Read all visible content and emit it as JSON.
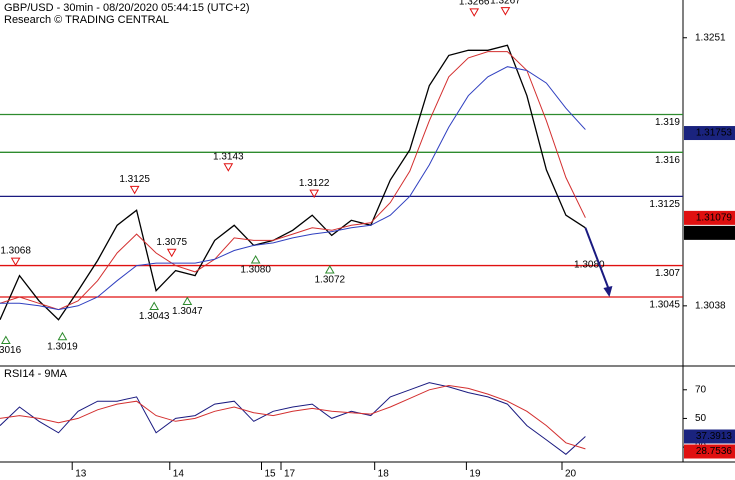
{
  "chart_data": [
    {
      "type": "line",
      "title": "GBP/USD - 30min - 08/20/2020 05:44:15 (UTC+2)",
      "subtitle": "Research © TRADING CENTRAL",
      "x": [
        0,
        10,
        20,
        30,
        40,
        50,
        60,
        70,
        80,
        90,
        100,
        110,
        120,
        130,
        140,
        150,
        160,
        170,
        180,
        190,
        200,
        210,
        220,
        230,
        240,
        250,
        260,
        270,
        280,
        290,
        300
      ],
      "xlim": [
        0,
        350
      ],
      "xticks": [
        {
          "value": 37,
          "label": "13"
        },
        {
          "value": 87,
          "label": "14"
        },
        {
          "value": 134,
          "label": "15"
        },
        {
          "value": 144,
          "label": "17"
        },
        {
          "value": 192,
          "label": "18"
        },
        {
          "value": 239,
          "label": "19"
        },
        {
          "value": 288,
          "label": "20"
        }
      ],
      "ylim": [
        1.2991,
        1.3281
      ],
      "yticks": [
        1.3251,
        1.3038
      ],
      "series": [
        {
          "color": "#000000",
          "values": [
            1.3027,
            1.3062,
            1.3042,
            1.3027,
            1.305,
            1.3074,
            1.3102,
            1.3114,
            1.305,
            1.3066,
            1.3062,
            1.309,
            1.3102,
            1.3086,
            1.309,
            1.3098,
            1.311,
            1.3094,
            1.3106,
            1.3102,
            1.3138,
            1.3162,
            1.3213,
            1.3237,
            1.3241,
            1.3241,
            1.3245,
            1.3205,
            1.3146,
            1.311,
            1.31
          ]
        },
        {
          "color": "#d32f2f",
          "values": [
            1.304,
            1.3045,
            1.304,
            1.3035,
            1.3042,
            1.3058,
            1.308,
            1.3095,
            1.308,
            1.307,
            1.3065,
            1.3075,
            1.3092,
            1.309,
            1.309,
            1.3095,
            1.31,
            1.3098,
            1.3102,
            1.3104,
            1.312,
            1.3145,
            1.3185,
            1.322,
            1.3235,
            1.324,
            1.324,
            1.3225,
            1.3185,
            1.314,
            1.3108
          ]
        },
        {
          "color": "#3040c0",
          "values": [
            1.304,
            1.304,
            1.3038,
            1.3035,
            1.3038,
            1.3045,
            1.3058,
            1.307,
            1.3072,
            1.3072,
            1.3072,
            1.3075,
            1.3082,
            1.3086,
            1.3088,
            1.3092,
            1.3095,
            1.3097,
            1.31,
            1.3102,
            1.311,
            1.3125,
            1.315,
            1.318,
            1.3205,
            1.322,
            1.3228,
            1.3225,
            1.3215,
            1.3195,
            1.3178
          ]
        }
      ],
      "levels": [
        {
          "value": 1.319,
          "color": "#2e8b2e"
        },
        {
          "value": 1.316,
          "color": "#2e8b2e"
        },
        {
          "value": 1.3125,
          "color": "#1a1a80"
        },
        {
          "value": 1.307,
          "color": "#e01010"
        },
        {
          "value": 1.3045,
          "color": "#e01010"
        }
      ],
      "annotations": [
        {
          "x": 8,
          "value": 1.3068,
          "kind": "high"
        },
        {
          "x": 3,
          "value": 1.3016,
          "kind": "low"
        },
        {
          "x": 32,
          "value": 1.3019,
          "kind": "low"
        },
        {
          "x": 69,
          "value": 1.3125,
          "kind": "high"
        },
        {
          "x": 88,
          "value": 1.3075,
          "kind": "high"
        },
        {
          "x": 79,
          "value": 1.3043,
          "kind": "low"
        },
        {
          "x": 96,
          "value": 1.3047,
          "kind": "low"
        },
        {
          "x": 117,
          "value": 1.3143,
          "kind": "high"
        },
        {
          "x": 131,
          "value": 1.308,
          "label": "1.3080",
          "kind": "low"
        },
        {
          "x": 161,
          "value": 1.3122,
          "kind": "high"
        },
        {
          "x": 169,
          "value": 1.3072,
          "kind": "low"
        },
        {
          "x": 243,
          "value": 1.3266,
          "kind": "high"
        },
        {
          "x": 259,
          "value": 1.3267,
          "kind": "high"
        },
        {
          "x": 302,
          "value": 1.308,
          "label": "1.3080",
          "kind": "target"
        }
      ],
      "price_labels": [
        {
          "value": 1.31753,
          "color": "#1a237e"
        },
        {
          "value": 1.31079,
          "color": "#e01010"
        },
        {
          "value": 1.3105,
          "color": "#000000"
        }
      ]
    },
    {
      "type": "line",
      "title": "RSI14 - 9MA",
      "x": [
        0,
        10,
        20,
        30,
        40,
        50,
        60,
        70,
        80,
        90,
        100,
        110,
        120,
        130,
        140,
        150,
        160,
        170,
        180,
        190,
        200,
        210,
        220,
        230,
        240,
        250,
        260,
        270,
        280,
        290,
        300
      ],
      "xlim": [
        0,
        350
      ],
      "ylim": [
        20.3,
        85.9
      ],
      "yticks": [
        70,
        50,
        30
      ],
      "series": [
        {
          "color": "#1a1a80",
          "values": [
            45,
            58,
            48,
            40,
            55,
            62,
            62,
            65,
            40,
            50,
            52,
            60,
            62,
            48,
            55,
            58,
            60,
            50,
            55,
            52,
            65,
            70,
            75,
            72,
            68,
            65,
            60,
            45,
            35,
            25,
            37.4
          ]
        },
        {
          "color": "#d32f2f",
          "values": [
            50,
            52,
            50,
            47,
            50,
            56,
            60,
            62,
            52,
            48,
            50,
            55,
            58,
            54,
            52,
            55,
            57,
            55,
            54,
            53,
            58,
            64,
            70,
            73,
            71,
            67,
            62,
            55,
            45,
            33,
            28.75
          ]
        }
      ],
      "price_labels": [
        {
          "value": 37.3913,
          "color": "#1a237e"
        },
        {
          "value": 28.7536,
          "color": "#e01010"
        }
      ]
    }
  ]
}
